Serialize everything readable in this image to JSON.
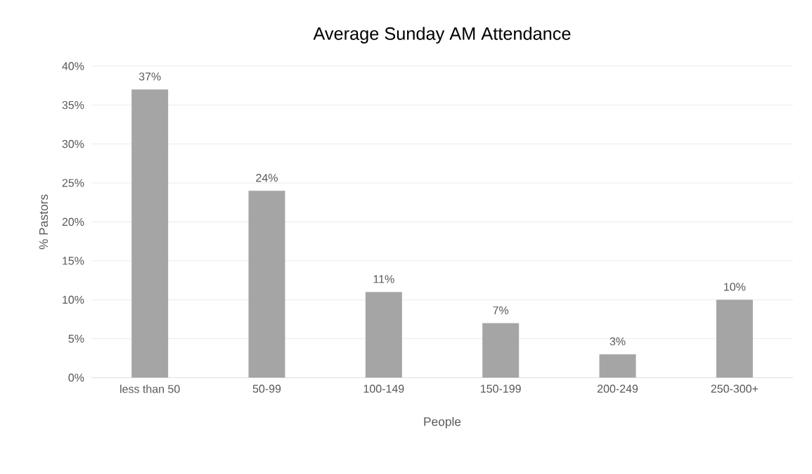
{
  "chart_data": {
    "type": "bar",
    "title": "Average Sunday AM Attendance",
    "xlabel": "People",
    "ylabel": "% Pastors",
    "categories": [
      "less than 50",
      "50-99",
      "100-149",
      "150-199",
      "200-249",
      "250-300+"
    ],
    "values": [
      37,
      24,
      11,
      7,
      3,
      10
    ],
    "value_labels": [
      "37%",
      "24%",
      "11%",
      "7%",
      "3%",
      "10%"
    ],
    "color": "#a5a5a5",
    "ylim": [
      0,
      40
    ],
    "yticks": [
      {
        "value": 0,
        "label": "0%"
      },
      {
        "value": 5,
        "label": "5%"
      },
      {
        "value": 10,
        "label": "10%"
      },
      {
        "value": 15,
        "label": "15%"
      },
      {
        "value": 20,
        "label": "20%"
      },
      {
        "value": 25,
        "label": "25%"
      },
      {
        "value": 30,
        "label": "30%"
      },
      {
        "value": 35,
        "label": "35%"
      },
      {
        "value": 40,
        "label": "40%"
      }
    ],
    "grid": "y"
  }
}
